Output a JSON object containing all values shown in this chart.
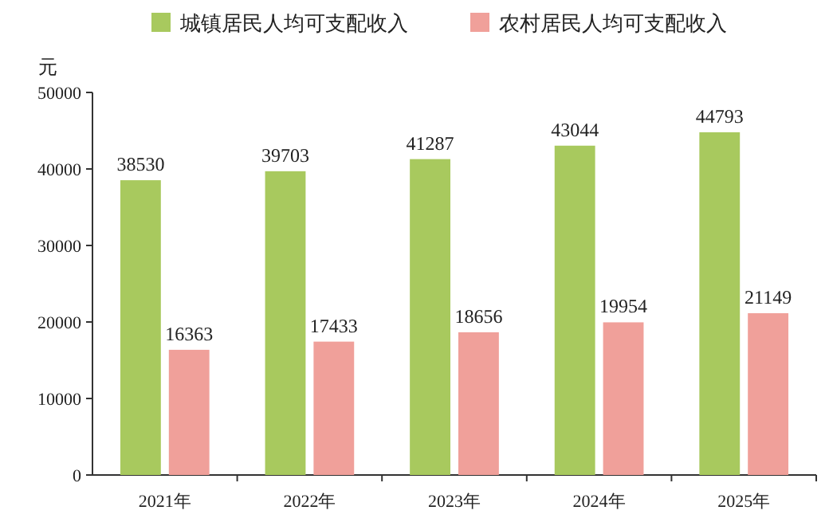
{
  "chart_data": {
    "type": "bar",
    "ylabel": "元",
    "categories": [
      "2021年",
      "2022年",
      "2023年",
      "2024年",
      "2025年"
    ],
    "series": [
      {
        "name": "城镇居民人均可支配收入",
        "color": "#a8c95e",
        "values": [
          38530,
          39703,
          41287,
          43044,
          44793
        ]
      },
      {
        "name": "农村居民人均可支配收入",
        "color": "#f0a09a",
        "values": [
          16363,
          17433,
          18656,
          19954,
          21149
        ]
      }
    ],
    "ylim": [
      0,
      50000
    ],
    "yticks": [
      0,
      10000,
      20000,
      30000,
      40000,
      50000
    ],
    "data_labels": true,
    "legend": "top",
    "grid": false
  }
}
